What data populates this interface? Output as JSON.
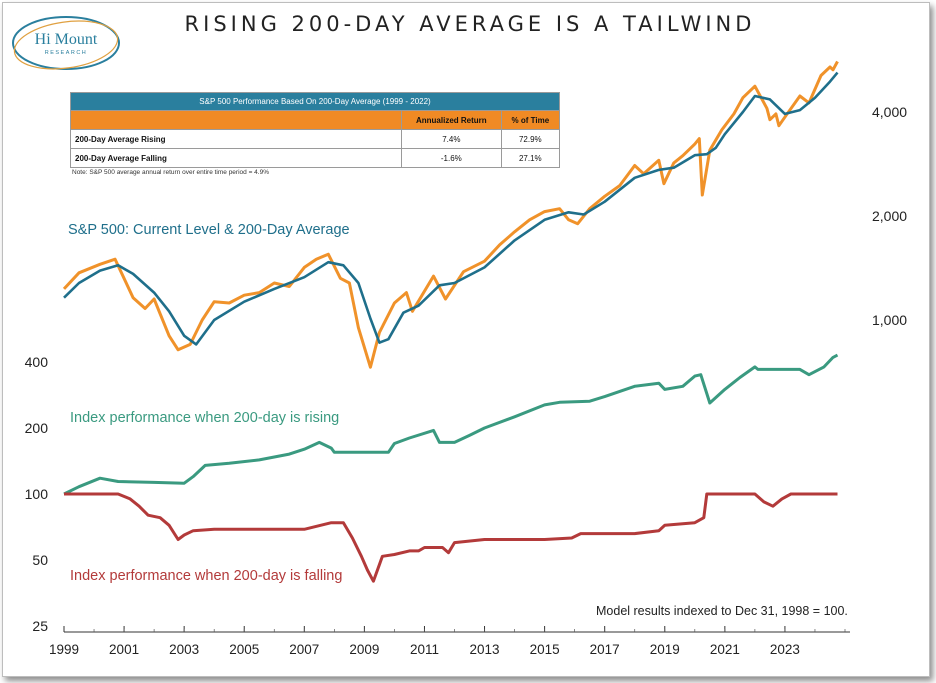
{
  "title": "RISING 200-DAY AVERAGE IS A TAILWIND",
  "logo": {
    "text": "Hi Mount",
    "subtext": "RESEARCH"
  },
  "table": {
    "header": "S&P 500 Performance Based On 200-Day Average (1999 - 2022)",
    "columns": [
      "",
      "Annualized Return",
      "% of Time"
    ],
    "rows": [
      {
        "label": "200-Day Average Rising",
        "return": "7.4%",
        "time": "72.9%"
      },
      {
        "label": "200-Day Average Falling",
        "return": "-1.6%",
        "time": "27.1%"
      }
    ],
    "note": "Note: S&P 500 average annual return over entire time period = 4.9%"
  },
  "annotations": {
    "sp500": "S&P 500: Current Level & 200-Day Average",
    "rising": "Index performance when 200-day is rising",
    "falling": "Index performance when 200-day is falling",
    "model": "Model results indexed to Dec 31, 1998 = 100."
  },
  "colors": {
    "sp500": "#f0922a",
    "ma200": "#1f6f8b",
    "rising": "#3a9a80",
    "falling": "#b33a3a",
    "table_header": "#2a7f9e",
    "table_colhead": "#f08a24"
  },
  "chart_data": [
    {
      "type": "line",
      "scale": "log",
      "axis": "right",
      "yticks": [
        1000,
        2000,
        4000
      ],
      "ytick_labels": [
        "1,000",
        "2,000",
        "4,000"
      ],
      "series": [
        {
          "name": "S&P 500",
          "x": [
            1999.0,
            1999.5,
            2000.2,
            2000.7,
            2001.3,
            2001.7,
            2002.0,
            2002.5,
            2002.8,
            2003.2,
            2003.6,
            2004.0,
            2004.5,
            2005.0,
            2005.5,
            2006.0,
            2006.5,
            2007.0,
            2007.4,
            2007.8,
            2008.2,
            2008.5,
            2008.8,
            2009.2,
            2009.5,
            2010.0,
            2010.4,
            2010.6,
            2011.3,
            2011.7,
            2012.3,
            2013.0,
            2013.5,
            2014.0,
            2014.5,
            2015.0,
            2015.5,
            2015.8,
            2016.1,
            2016.5,
            2017.0,
            2017.5,
            2018.0,
            2018.3,
            2018.8,
            2018.97,
            2019.3,
            2019.6,
            2020.0,
            2020.15,
            2020.25,
            2020.5,
            2020.9,
            2021.3,
            2021.6,
            2022.0,
            2022.4,
            2022.5,
            2022.7,
            2022.8,
            2023.1,
            2023.5,
            2023.8,
            2024.2,
            2024.5,
            2024.6,
            2024.75
          ],
          "y": [
            1230,
            1370,
            1450,
            1500,
            1160,
            1080,
            1150,
            900,
            820,
            850,
            1000,
            1130,
            1120,
            1180,
            1200,
            1280,
            1250,
            1420,
            1500,
            1550,
            1320,
            1280,
            950,
            730,
            920,
            1120,
            1200,
            1060,
            1340,
            1150,
            1380,
            1480,
            1650,
            1800,
            1950,
            2060,
            2100,
            1950,
            1900,
            2100,
            2280,
            2450,
            2800,
            2650,
            2900,
            2480,
            2850,
            2990,
            3230,
            3350,
            2300,
            3100,
            3550,
            3950,
            4400,
            4750,
            4100,
            3800,
            3950,
            3650,
            3980,
            4450,
            4250,
            5100,
            5400,
            5300,
            5600
          ]
        },
        {
          "name": "200-Day Average",
          "x": [
            1999.0,
            1999.5,
            2000.2,
            2000.8,
            2001.3,
            2002.0,
            2002.5,
            2003.0,
            2003.4,
            2004.0,
            2005.0,
            2006.0,
            2007.0,
            2007.8,
            2008.3,
            2008.8,
            2009.2,
            2009.5,
            2009.8,
            2010.3,
            2010.8,
            2011.5,
            2012.0,
            2013.0,
            2014.0,
            2015.0,
            2015.8,
            2016.3,
            2017.0,
            2018.0,
            2018.8,
            2019.3,
            2020.0,
            2020.4,
            2020.7,
            2021.0,
            2021.6,
            2022.0,
            2022.5,
            2023.0,
            2023.5,
            2024.0,
            2024.5,
            2024.75
          ],
          "y": [
            1160,
            1280,
            1390,
            1440,
            1360,
            1200,
            1060,
            900,
            850,
            1000,
            1130,
            1230,
            1330,
            1470,
            1440,
            1280,
            1010,
            860,
            880,
            1050,
            1100,
            1260,
            1280,
            1420,
            1700,
            1950,
            2050,
            2020,
            2200,
            2580,
            2720,
            2760,
            3000,
            3020,
            3150,
            3450,
            4000,
            4450,
            4350,
            3950,
            4050,
            4400,
            4900,
            5200
          ]
        }
      ]
    },
    {
      "type": "line",
      "scale": "log",
      "axis": "left",
      "yticks": [
        25,
        50,
        100,
        200,
        400
      ],
      "ytick_labels": [
        "25",
        "50",
        "100",
        "200",
        "400"
      ],
      "xticks": [
        1999,
        2001,
        2003,
        2005,
        2007,
        2009,
        2011,
        2013,
        2015,
        2017,
        2019,
        2021,
        2023
      ],
      "xtick_labels": [
        "1999",
        "2001",
        "2003",
        "2005",
        "2007",
        "2009",
        "2011",
        "2013",
        "2015",
        "2017",
        "2019",
        "2021",
        "2023"
      ],
      "series": [
        {
          "name": "Index performance when 200-day is rising",
          "x": [
            1999.0,
            1999.5,
            2000.2,
            2000.8,
            2002.0,
            2003.0,
            2003.3,
            2003.7,
            2004.5,
            2005.5,
            2006.5,
            2007.0,
            2007.5,
            2007.9,
            2008.0,
            2009.8,
            2010.0,
            2010.5,
            2011.3,
            2011.5,
            2012.0,
            2012.5,
            2013.0,
            2014.0,
            2015.0,
            2015.5,
            2016.5,
            2017.0,
            2018.0,
            2018.8,
            2019.0,
            2019.6,
            2020.0,
            2020.2,
            2020.5,
            2021.0,
            2021.5,
            2022.0,
            2022.1,
            2023.5,
            2023.8,
            2024.3,
            2024.6,
            2024.75
          ],
          "y": [
            100,
            108,
            118,
            114,
            113,
            112,
            120,
            135,
            138,
            143,
            152,
            160,
            172,
            162,
            155,
            155,
            170,
            180,
            195,
            172,
            172,
            185,
            200,
            225,
            255,
            262,
            265,
            278,
            310,
            320,
            300,
            310,
            345,
            350,
            260,
            300,
            340,
            380,
            370,
            370,
            350,
            380,
            420,
            430
          ]
        },
        {
          "name": "Index performance when 200-day is falling",
          "x": [
            1999.0,
            2000.8,
            2001.2,
            2001.5,
            2001.8,
            2002.2,
            2002.5,
            2002.8,
            2003.0,
            2003.3,
            2004.0,
            2005.0,
            2006.0,
            2007.0,
            2007.9,
            2008.3,
            2008.6,
            2008.9,
            2009.1,
            2009.3,
            2009.6,
            2010.0,
            2010.5,
            2010.8,
            2011.0,
            2011.6,
            2011.8,
            2012.0,
            2013.0,
            2014.0,
            2015.0,
            2015.9,
            2016.2,
            2017.0,
            2018.0,
            2018.8,
            2019.0,
            2020.0,
            2020.3,
            2020.4,
            2021.0,
            2022.0,
            2022.3,
            2022.6,
            2022.9,
            2023.2,
            2024.0,
            2024.75
          ],
          "y": [
            100,
            100,
            95,
            88,
            80,
            78,
            72,
            62,
            65,
            68,
            69,
            69,
            69,
            69,
            74,
            74,
            63,
            52,
            45,
            40,
            52,
            53,
            55,
            55,
            57,
            57,
            54,
            60,
            62,
            62,
            62,
            63,
            66,
            66,
            66,
            68,
            72,
            74,
            78,
            100,
            100,
            100,
            92,
            88,
            95,
            100,
            100,
            100
          ]
        }
      ]
    }
  ]
}
